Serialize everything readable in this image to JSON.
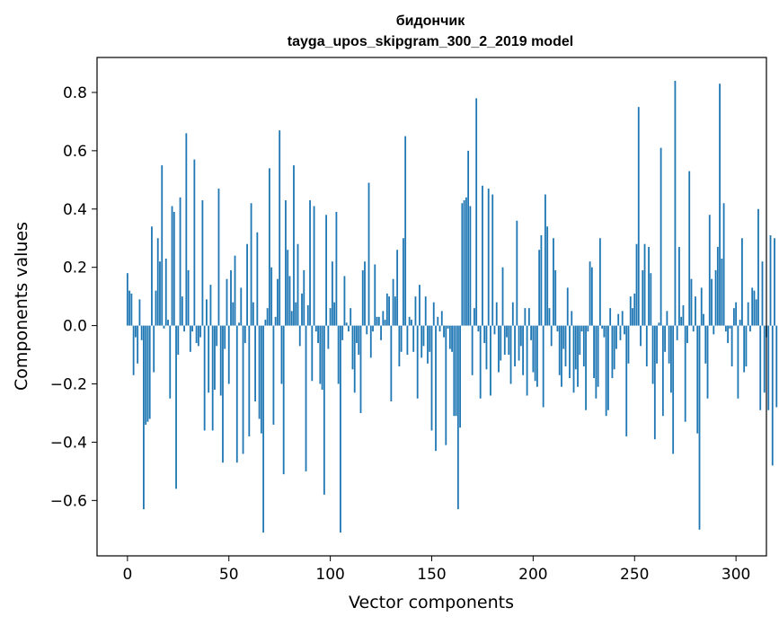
{
  "chart_data": {
    "type": "bar",
    "title": "бидончик",
    "subtitle": "tayga_upos_skipgram_300_2_2019 model",
    "xlabel": "Vector components",
    "ylabel": "Components values",
    "xlim": [
      -15,
      315
    ],
    "ylim": [
      -0.79,
      0.92
    ],
    "xticks": [
      0,
      50,
      100,
      150,
      200,
      250,
      300
    ],
    "yticks": [
      -0.6,
      -0.4,
      -0.2,
      0.0,
      0.2,
      0.4,
      0.6,
      0.8
    ],
    "ytick_labels": [
      "−0.6",
      "−0.4",
      "−0.2",
      "0.0",
      "0.2",
      "0.4",
      "0.6",
      "0.8"
    ],
    "grid": false,
    "bar_color": "#1f77b4",
    "x_start": 0,
    "values": [
      0.18,
      0.12,
      0.11,
      -0.17,
      -0.04,
      -0.13,
      0.09,
      -0.05,
      -0.63,
      -0.34,
      -0.33,
      -0.32,
      0.34,
      -0.16,
      0.12,
      0.3,
      0.22,
      0.55,
      -0.01,
      0.23,
      0.02,
      -0.25,
      0.41,
      0.39,
      -0.56,
      -0.1,
      0.44,
      0.1,
      -0.02,
      0.66,
      0.19,
      -0.09,
      -0.02,
      0.57,
      -0.06,
      -0.07,
      -0.04,
      0.43,
      -0.36,
      0.09,
      -0.23,
      0.14,
      -0.36,
      -0.22,
      -0.07,
      0.47,
      -0.24,
      -0.47,
      -0.08,
      0.16,
      -0.2,
      0.19,
      0.08,
      0.24,
      -0.47,
      0.01,
      0.13,
      -0.44,
      -0.06,
      0.28,
      -0.38,
      0.42,
      0.08,
      -0.26,
      0.32,
      -0.32,
      -0.37,
      -0.71,
      0.02,
      0.06,
      0.54,
      0.2,
      -0.34,
      0.03,
      0.16,
      0.67,
      -0.2,
      -0.51,
      0.43,
      0.26,
      0.17,
      0.05,
      0.55,
      0.08,
      0.28,
      -0.07,
      0.11,
      0.19,
      -0.5,
      0.07,
      0.43,
      -0.19,
      0.41,
      -0.02,
      -0.06,
      -0.2,
      -0.22,
      -0.58,
      0.38,
      -0.08,
      0.06,
      0.22,
      0.08,
      0.39,
      -0.2,
      -0.71,
      -0.05,
      0.17,
      0.01,
      -0.02,
      0.06,
      -0.15,
      -0.23,
      -0.06,
      -0.1,
      -0.3,
      0.19,
      0.22,
      -0.03,
      0.49,
      -0.11,
      -0.02,
      0.21,
      0.03,
      0.03,
      -0.05,
      0.05,
      0.02,
      0.11,
      0.1,
      -0.26,
      0.16,
      0.1,
      0.26,
      -0.14,
      -0.09,
      0.3,
      0.65,
      -0.1,
      0.03,
      0.02,
      -0.09,
      0.1,
      -0.25,
      0.14,
      -0.11,
      -0.07,
      0.1,
      -0.13,
      -0.09,
      -0.36,
      0.08,
      -0.43,
      0.03,
      -0.02,
      0.05,
      -0.04,
      -0.41,
      -0.01,
      -0.08,
      -0.09,
      -0.31,
      -0.31,
      -0.63,
      -0.35,
      0.42,
      0.43,
      0.44,
      0.6,
      0.41,
      -0.17,
      0.06,
      0.78,
      -0.02,
      -0.25,
      0.48,
      -0.06,
      -0.15,
      0.47,
      -0.24,
      0.45,
      -0.03,
      0.08,
      -0.16,
      -0.12,
      0.2,
      -0.1,
      -0.04,
      -0.1,
      -0.2,
      0.08,
      -0.14,
      0.36,
      -0.12,
      -0.07,
      -0.17,
      0.06,
      -0.24,
      0.06,
      -0.05,
      -0.16,
      -0.19,
      -0.21,
      0.26,
      0.31,
      -0.28,
      0.45,
      0.34,
      0.06,
      -0.07,
      0.3,
      0.19,
      -0.02,
      -0.17,
      -0.21,
      -0.08,
      -0.14,
      0.13,
      -0.18,
      0.05,
      -0.23,
      -0.15,
      -0.21,
      -0.1,
      -0.02,
      -0.14,
      -0.29,
      -0.02,
      0.22,
      0.2,
      -0.18,
      -0.25,
      -0.21,
      0.3,
      -0.01,
      -0.04,
      -0.31,
      -0.29,
      0.06,
      -0.18,
      -0.15,
      -0.08,
      0.04,
      -0.05,
      0.05,
      -0.03,
      -0.38,
      -0.13,
      0.1,
      0.06,
      0.11,
      0.28,
      0.75,
      -0.07,
      0.19,
      0.28,
      -0.14,
      0.27,
      0.18,
      -0.2,
      -0.39,
      -0.13,
      0.01,
      0.61,
      -0.31,
      -0.09,
      0.05,
      -0.13,
      -0.23,
      -0.44,
      0.84,
      -0.05,
      0.27,
      0.03,
      0.07,
      -0.33,
      -0.06,
      0.53,
      0.16,
      -0.02,
      0.1,
      -0.37,
      -0.7,
      0.13,
      0.04,
      -0.13,
      -0.25,
      0.38,
      0.16,
      -0.03,
      0.19,
      0.27,
      0.83,
      0.23,
      0.42,
      -0.02,
      -0.06,
      -0.01,
      -0.14,
      0.06,
      0.08,
      -0.25,
      0.02,
      0.3,
      -0.16,
      -0.14,
      0.08,
      -0.02,
      0.13,
      0.12,
      0.09,
      0.4,
      -0.29,
      0.22,
      -0.23,
      -0.04,
      -0.29,
      0.31,
      -0.48,
      0.3,
      -0.28
    ]
  }
}
